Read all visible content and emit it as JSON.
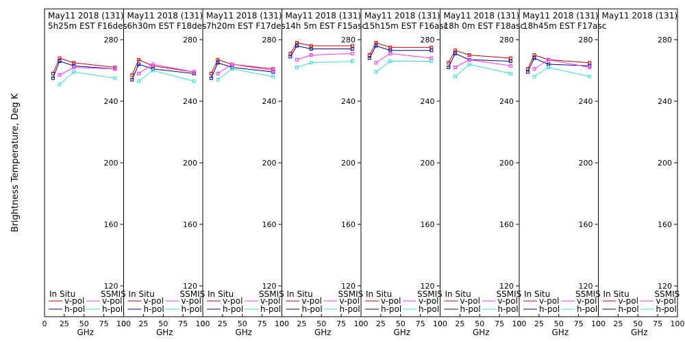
{
  "figure": {
    "ylabel": "Brightness Temperature, Deg K",
    "xlabel": "GHz",
    "x_ticks": [
      "0",
      "25",
      "50",
      "75",
      "100"
    ],
    "y_ticks": [
      "280",
      "240",
      "200",
      "160",
      "120"
    ],
    "legend": {
      "in_situ_heading": "In Situ",
      "ssmis_heading": "SSMIS",
      "vpol": "v-pol",
      "hpol": "h-pol"
    }
  },
  "colors": {
    "insitu_v": "#cc0000",
    "insitu_h": "#000099",
    "ssmis_v": "#ff33ff",
    "ssmis_h": "#33dddd"
  },
  "chart_data": [
    {
      "type": "line",
      "title": "May11 2018 (131)",
      "subtitle": "5h25m EST F16des",
      "xlim": [
        0,
        100
      ],
      "ylim": [
        110,
        290
      ],
      "x": [
        10.7,
        19,
        37,
        89
      ],
      "series": [
        {
          "name": "In Situ v-pol",
          "values": [
            258,
            268,
            265,
            262
          ]
        },
        {
          "name": "In Situ h-pol",
          "values": [
            255,
            266,
            263,
            261
          ]
        },
        {
          "name": "SSMIS v-pol",
          "values": [
            null,
            257,
            262,
            261
          ]
        },
        {
          "name": "SSMIS h-pol",
          "values": [
            null,
            251,
            259,
            255
          ]
        }
      ]
    },
    {
      "type": "line",
      "title": "May11 2018 (131)",
      "subtitle": "6h30m EST F18des",
      "xlim": [
        0,
        100
      ],
      "ylim": [
        110,
        290
      ],
      "x": [
        10.7,
        19,
        37,
        89
      ],
      "series": [
        {
          "name": "In Situ v-pol",
          "values": [
            257,
            267,
            263,
            259
          ]
        },
        {
          "name": "In Situ h-pol",
          "values": [
            254,
            264,
            261,
            258
          ]
        },
        {
          "name": "SSMIS v-pol",
          "values": [
            null,
            258,
            264,
            259
          ]
        },
        {
          "name": "SSMIS h-pol",
          "values": [
            null,
            253,
            260,
            253
          ]
        }
      ]
    },
    {
      "type": "line",
      "title": "May11 2018 (131)",
      "subtitle": "7h20m EST F17des",
      "xlim": [
        0,
        100
      ],
      "ylim": [
        110,
        290
      ],
      "x": [
        10.7,
        19,
        37,
        89
      ],
      "series": [
        {
          "name": "In Situ v-pol",
          "values": [
            258,
            267,
            264,
            261
          ]
        },
        {
          "name": "In Situ h-pol",
          "values": [
            255,
            265,
            262,
            259
          ]
        },
        {
          "name": "SSMIS v-pol",
          "values": [
            null,
            258,
            264,
            260
          ]
        },
        {
          "name": "SSMIS h-pol",
          "values": [
            null,
            254,
            261,
            256
          ]
        }
      ]
    },
    {
      "type": "line",
      "title": "May11 2018 (131)",
      "subtitle": "14h 5m EST F15asc",
      "xlim": [
        0,
        100
      ],
      "ylim": [
        110,
        290
      ],
      "x": [
        10.7,
        19,
        37,
        89
      ],
      "series": [
        {
          "name": "In Situ v-pol",
          "values": [
            271,
            278,
            276,
            276
          ]
        },
        {
          "name": "In Situ h-pol",
          "values": [
            269,
            276,
            274,
            274
          ]
        },
        {
          "name": "SSMIS v-pol",
          "values": [
            null,
            267,
            270,
            271
          ]
        },
        {
          "name": "SSMIS h-pol",
          "values": [
            null,
            262,
            265,
            266
          ]
        }
      ]
    },
    {
      "type": "line",
      "title": "May11 2018 (131)",
      "subtitle": "15h15m EST F16asc",
      "xlim": [
        0,
        100
      ],
      "ylim": [
        110,
        290
      ],
      "x": [
        10.7,
        19,
        37,
        89
      ],
      "series": [
        {
          "name": "In Situ v-pol",
          "values": [
            270,
            278,
            275,
            275
          ]
        },
        {
          "name": "In Situ h-pol",
          "values": [
            268,
            276,
            273,
            273
          ]
        },
        {
          "name": "SSMIS v-pol",
          "values": [
            null,
            265,
            271,
            268
          ]
        },
        {
          "name": "SSMIS h-pol",
          "values": [
            null,
            259,
            266,
            266
          ]
        }
      ]
    },
    {
      "type": "line",
      "title": "May11 2018 (131)",
      "subtitle": "18h 0m EST F18asc",
      "xlim": [
        0,
        100
      ],
      "ylim": [
        110,
        290
      ],
      "x": [
        10.7,
        19,
        37,
        89
      ],
      "series": [
        {
          "name": "In Situ v-pol",
          "values": [
            265,
            273,
            270,
            268
          ]
        },
        {
          "name": "In Situ h-pol",
          "values": [
            262,
            271,
            267,
            266
          ]
        },
        {
          "name": "SSMIS v-pol",
          "values": [
            null,
            262,
            267,
            263
          ]
        },
        {
          "name": "SSMIS h-pol",
          "values": [
            null,
            256,
            264,
            258
          ]
        }
      ]
    },
    {
      "type": "line",
      "title": "May11 2018 (131)",
      "subtitle": "18h45m EST F17asc",
      "xlim": [
        0,
        100
      ],
      "ylim": [
        110,
        290
      ],
      "x": [
        10.7,
        19,
        37,
        89
      ],
      "series": [
        {
          "name": "In Situ v-pol",
          "values": [
            261,
            270,
            267,
            265
          ]
        },
        {
          "name": "In Situ h-pol",
          "values": [
            259,
            268,
            264,
            263
          ]
        },
        {
          "name": "SSMIS v-pol",
          "values": [
            null,
            261,
            267,
            262
          ]
        },
        {
          "name": "SSMIS h-pol",
          "values": [
            null,
            256,
            262,
            256
          ]
        }
      ]
    },
    {
      "type": "line",
      "title": "May11 2018 (131)",
      "subtitle": "",
      "xlim": [
        0,
        100
      ],
      "ylim": [
        110,
        290
      ],
      "x": [
        10.7,
        19,
        37,
        89
      ],
      "series": []
    }
  ]
}
